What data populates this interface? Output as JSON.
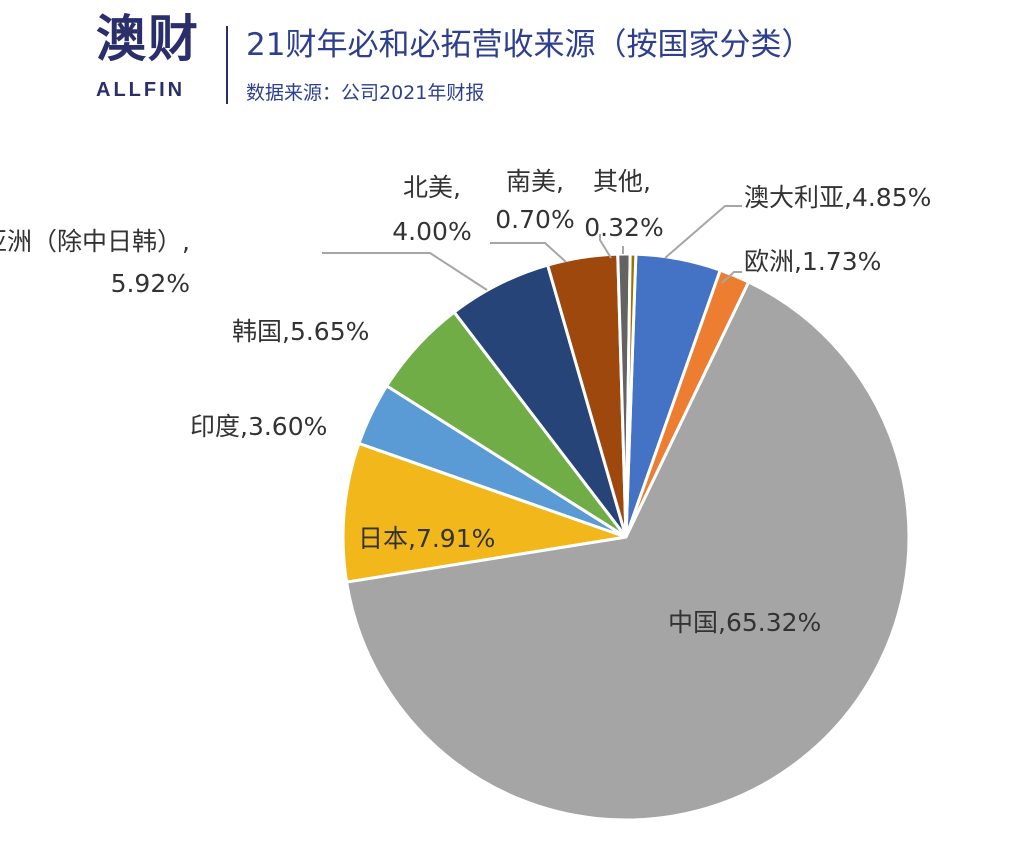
{
  "header": {
    "logo_cn": "澳财",
    "logo_en": "ALLFIN",
    "title": "21财年必和必拓营收来源（按国家分类）",
    "subtitle": "数据来源：公司2021年财报"
  },
  "watermark": {
    "cn": "澳财",
    "en": "ALLFIN"
  },
  "chart_data": {
    "type": "pie",
    "title": "21财年必和必拓营收来源（按国家分类）",
    "subtitle": "数据来源：公司2021年财报",
    "unit": "%",
    "slices": [
      {
        "name": "澳大利亚",
        "value": 4.85,
        "label": "4.85%",
        "color": "#4472c4"
      },
      {
        "name": "欧洲",
        "value": 1.73,
        "label": "1.73%",
        "color": "#ed7d31"
      },
      {
        "name": "中国",
        "value": 65.32,
        "label": "65.32%",
        "color": "#a5a5a5"
      },
      {
        "name": "日本",
        "value": 7.91,
        "label": "7.91%",
        "color": "#f2b81b"
      },
      {
        "name": "印度",
        "value": 3.6,
        "label": "3.60%",
        "color": "#5b9bd5"
      },
      {
        "name": "韩国",
        "value": 5.65,
        "label": "5.65%",
        "color": "#70ad47"
      },
      {
        "name": "亚洲（除中日韩）",
        "value": 5.92,
        "label": "5.92%",
        "color": "#264478"
      },
      {
        "name": "北美",
        "value": 4.0,
        "label": "4.00%",
        "color": "#9e480e"
      },
      {
        "name": "南美",
        "value": 0.7,
        "label": "0.70%",
        "color": "#636363"
      },
      {
        "name": "其他",
        "value": 0.32,
        "label": "0.32%",
        "color": "#997300"
      }
    ]
  }
}
